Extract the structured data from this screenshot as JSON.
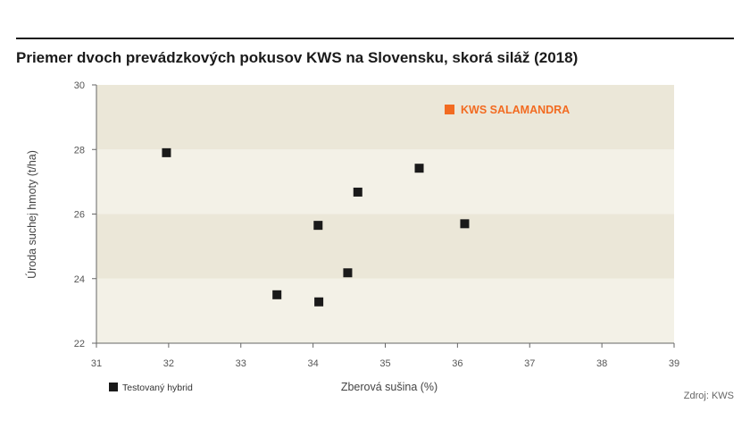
{
  "chart_data": {
    "type": "scatter",
    "title": "Priemer dvoch prevádzkových pokusov KWS na Slovensku, skorá siláž (2018)",
    "xlabel": "Zberová sušina (%)",
    "ylabel": "Úroda suchej hmoty (t/ha)",
    "xlim": [
      31,
      39
    ],
    "ylim": [
      22,
      30
    ],
    "xticks": [
      31,
      32,
      33,
      34,
      35,
      36,
      37,
      38,
      39
    ],
    "yticks": [
      22,
      24,
      26,
      28,
      30
    ],
    "grid": false,
    "legend_position": "bottom-left",
    "series": [
      {
        "name": "Testovaný hybrid",
        "color": "#1a1a1a",
        "x": [
          31.97,
          33.5,
          34.07,
          34.08,
          34.48,
          34.62,
          35.47,
          36.1
        ],
        "y": [
          27.9,
          23.5,
          25.65,
          23.28,
          24.18,
          26.68,
          27.42,
          25.7
        ]
      }
    ],
    "annotations": [
      {
        "text": "KWS SALAMANDRA",
        "color": "#f26b21",
        "marker": "square"
      }
    ],
    "source": "Zdroj: KWS",
    "band_colors": [
      "#f3f1e7",
      "#ebe7d8"
    ]
  }
}
